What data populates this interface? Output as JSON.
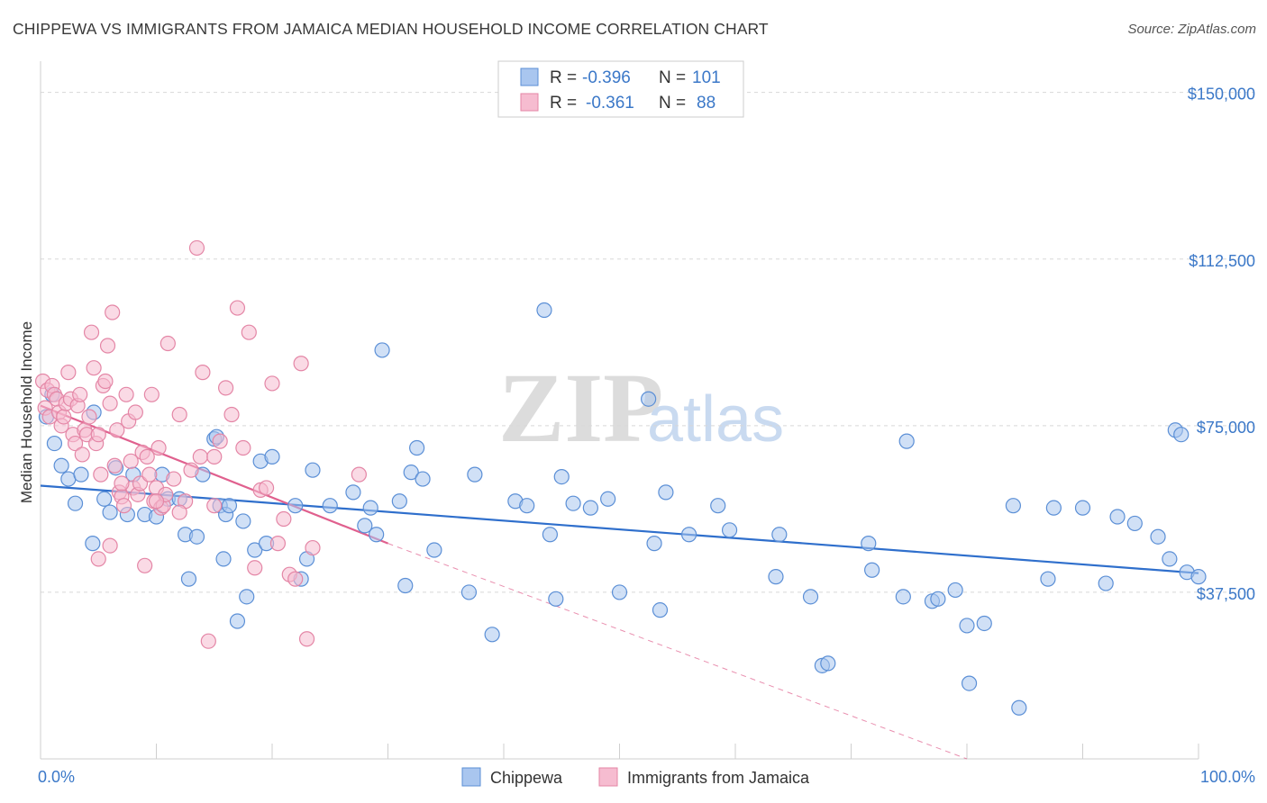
{
  "header": {
    "title": "CHIPPEWA VS IMMIGRANTS FROM JAMAICA MEDIAN HOUSEHOLD INCOME CORRELATION CHART",
    "source": "Source: ZipAtlas.com"
  },
  "watermark": {
    "zip": "ZIP",
    "atlas": "atlas"
  },
  "colors": {
    "blue_fill": "#a9c6ef",
    "blue_stroke": "#5b8fd6",
    "blue_line": "#2f6fcc",
    "pink_fill": "#f6bcd0",
    "pink_stroke": "#e486a6",
    "pink_line": "#e0608e",
    "grid": "#d8d8d8",
    "axis_label": "#3b78c8"
  },
  "stats": [
    {
      "r_label": "R =",
      "r_value": "-0.396",
      "n_label": "N =",
      "n_value": "101"
    },
    {
      "r_label": "R =",
      "r_value": "-0.361",
      "n_label": "N =",
      "n_value": "88"
    }
  ],
  "chart_data": {
    "type": "scatter",
    "xlabel": "",
    "ylabel": "Median Household Income",
    "xlim": [
      0,
      100
    ],
    "ylim": [
      0,
      155000
    ],
    "x_tick_labels": [
      "0.0%",
      "100.0%"
    ],
    "y_tick_labels": [
      "$150,000",
      "$112,500",
      "$75,000",
      "$37,500"
    ],
    "y_ticks": [
      150000,
      112500,
      75000,
      37500
    ],
    "grid": true,
    "legend_position": "bottom",
    "series": [
      {
        "name": "Chippewa",
        "trend": {
          "x0": 0,
          "y0": 61500,
          "x1": 100,
          "y1": 41800,
          "dashed_extension": false
        },
        "points": [
          [
            0.5,
            77000
          ],
          [
            1.2,
            71000
          ],
          [
            1.8,
            66000
          ],
          [
            2.4,
            63000
          ],
          [
            3.0,
            57500
          ],
          [
            3.5,
            64000
          ],
          [
            4.5,
            48500
          ],
          [
            4.6,
            78000
          ],
          [
            5.5,
            58500
          ],
          [
            6.5,
            65500
          ],
          [
            7.5,
            55000
          ],
          [
            8.0,
            64000
          ],
          [
            9.0,
            55000
          ],
          [
            10.0,
            54500
          ],
          [
            10.5,
            64000
          ],
          [
            11.0,
            58500
          ],
          [
            12.0,
            58500
          ],
          [
            12.5,
            50500
          ],
          [
            12.8,
            40500
          ],
          [
            13.5,
            50000
          ],
          [
            14.0,
            64000
          ],
          [
            15.0,
            72000
          ],
          [
            15.2,
            72500
          ],
          [
            15.5,
            57000
          ],
          [
            15.8,
            45000
          ],
          [
            16.0,
            55000
          ],
          [
            16.3,
            57000
          ],
          [
            17.0,
            31000
          ],
          [
            17.5,
            53500
          ],
          [
            17.8,
            36500
          ],
          [
            18.5,
            47000
          ],
          [
            19.0,
            67000
          ],
          [
            19.5,
            48500
          ],
          [
            20.0,
            68000
          ],
          [
            22.0,
            57000
          ],
          [
            22.5,
            40500
          ],
          [
            23.0,
            45000
          ],
          [
            23.5,
            65000
          ],
          [
            27.0,
            60000
          ],
          [
            28.0,
            52500
          ],
          [
            28.5,
            56500
          ],
          [
            29.0,
            50500
          ],
          [
            29.5,
            92000
          ],
          [
            31.0,
            58000
          ],
          [
            31.5,
            39000
          ],
          [
            32.0,
            64500
          ],
          [
            32.5,
            70000
          ],
          [
            33.0,
            63000
          ],
          [
            34.0,
            47000
          ],
          [
            37.5,
            64000
          ],
          [
            39.0,
            28000
          ],
          [
            41.0,
            58000
          ],
          [
            42.0,
            57000
          ],
          [
            43.5,
            101000
          ],
          [
            44.0,
            50500
          ],
          [
            44.5,
            36000
          ],
          [
            45.0,
            63500
          ],
          [
            46.0,
            57500
          ],
          [
            47.5,
            56500
          ],
          [
            49.0,
            58500
          ],
          [
            50.0,
            37500
          ],
          [
            52.5,
            81000
          ],
          [
            53.0,
            48500
          ],
          [
            53.5,
            33500
          ],
          [
            54.0,
            60000
          ],
          [
            56.0,
            50500
          ],
          [
            58.5,
            57000
          ],
          [
            59.5,
            51500
          ],
          [
            63.5,
            41000
          ],
          [
            63.8,
            50500
          ],
          [
            66.5,
            36500
          ],
          [
            67.5,
            21000
          ],
          [
            68.0,
            21500
          ],
          [
            71.5,
            48500
          ],
          [
            71.8,
            42500
          ],
          [
            74.5,
            36500
          ],
          [
            74.8,
            71500
          ],
          [
            77.0,
            35500
          ],
          [
            77.5,
            36000
          ],
          [
            79.0,
            38000
          ],
          [
            80.0,
            30000
          ],
          [
            80.2,
            17000
          ],
          [
            81.5,
            30500
          ],
          [
            84.0,
            57000
          ],
          [
            84.5,
            11500
          ],
          [
            87.0,
            40500
          ],
          [
            87.5,
            56500
          ],
          [
            90.0,
            56500
          ],
          [
            92.0,
            39500
          ],
          [
            93.0,
            54500
          ],
          [
            94.5,
            53000
          ],
          [
            96.5,
            50000
          ],
          [
            97.5,
            45000
          ],
          [
            98.0,
            74000
          ],
          [
            98.5,
            73000
          ],
          [
            99.0,
            42000
          ],
          [
            100.0,
            41000
          ],
          [
            1.0,
            82000
          ],
          [
            6.0,
            55500
          ],
          [
            25.0,
            57000
          ],
          [
            37.0,
            37500
          ]
        ]
      },
      {
        "name": "Immigrants from Jamaica",
        "trend": {
          "x0": 0,
          "y0": 79500,
          "x1": 30,
          "y1": 48500,
          "dashed_extension": true,
          "dash_to_x": 80,
          "dash_to_y": 0
        },
        "points": [
          [
            0.2,
            85000
          ],
          [
            0.4,
            79000
          ],
          [
            0.6,
            83000
          ],
          [
            0.8,
            77000
          ],
          [
            1.0,
            84000
          ],
          [
            1.2,
            82000
          ],
          [
            1.4,
            81000
          ],
          [
            1.6,
            78000
          ],
          [
            1.8,
            75000
          ],
          [
            2.0,
            77000
          ],
          [
            2.2,
            80000
          ],
          [
            2.4,
            87000
          ],
          [
            2.6,
            81000
          ],
          [
            2.8,
            73000
          ],
          [
            3.0,
            71000
          ],
          [
            3.2,
            79500
          ],
          [
            3.4,
            82000
          ],
          [
            3.6,
            68500
          ],
          [
            3.8,
            74000
          ],
          [
            4.0,
            73000
          ],
          [
            4.2,
            77000
          ],
          [
            4.4,
            96000
          ],
          [
            4.6,
            88000
          ],
          [
            4.8,
            71000
          ],
          [
            5.0,
            73000
          ],
          [
            5.2,
            64000
          ],
          [
            5.4,
            84000
          ],
          [
            5.6,
            85000
          ],
          [
            5.8,
            93000
          ],
          [
            6.0,
            80000
          ],
          [
            6.2,
            100500
          ],
          [
            6.4,
            66000
          ],
          [
            6.6,
            74000
          ],
          [
            6.8,
            60000
          ],
          [
            7.0,
            59000
          ],
          [
            7.2,
            57000
          ],
          [
            7.4,
            82000
          ],
          [
            7.6,
            76000
          ],
          [
            7.8,
            67000
          ],
          [
            8.0,
            61000
          ],
          [
            8.2,
            78000
          ],
          [
            8.4,
            59500
          ],
          [
            8.6,
            62000
          ],
          [
            8.8,
            69000
          ],
          [
            9.0,
            43500
          ],
          [
            9.2,
            68000
          ],
          [
            9.4,
            64000
          ],
          [
            9.6,
            82000
          ],
          [
            9.8,
            58000
          ],
          [
            10.0,
            61000
          ],
          [
            10.2,
            70000
          ],
          [
            10.4,
            56500
          ],
          [
            10.6,
            57000
          ],
          [
            10.8,
            59500
          ],
          [
            11.0,
            93500
          ],
          [
            11.5,
            63000
          ],
          [
            12.0,
            77500
          ],
          [
            12.5,
            58000
          ],
          [
            13.0,
            65000
          ],
          [
            13.5,
            115000
          ],
          [
            13.8,
            68000
          ],
          [
            14.0,
            87000
          ],
          [
            14.5,
            26500
          ],
          [
            15.0,
            57000
          ],
          [
            15.5,
            71500
          ],
          [
            16.0,
            83500
          ],
          [
            16.5,
            77500
          ],
          [
            17.0,
            101500
          ],
          [
            17.5,
            70000
          ],
          [
            18.0,
            96000
          ],
          [
            18.5,
            43000
          ],
          [
            19.0,
            60500
          ],
          [
            19.5,
            61000
          ],
          [
            20.0,
            84500
          ],
          [
            20.5,
            48500
          ],
          [
            21.0,
            54000
          ],
          [
            21.5,
            41500
          ],
          [
            22.0,
            40500
          ],
          [
            22.5,
            89000
          ],
          [
            23.0,
            27000
          ],
          [
            23.5,
            47500
          ],
          [
            27.5,
            64000
          ],
          [
            5.0,
            45000
          ],
          [
            6.0,
            48000
          ],
          [
            7.0,
            62000
          ],
          [
            10.0,
            58000
          ],
          [
            12.0,
            55500
          ],
          [
            15.0,
            68000
          ]
        ]
      }
    ]
  },
  "legend": {
    "items": [
      {
        "label": "Chippewa"
      },
      {
        "label": "Immigrants from Jamaica"
      }
    ]
  }
}
